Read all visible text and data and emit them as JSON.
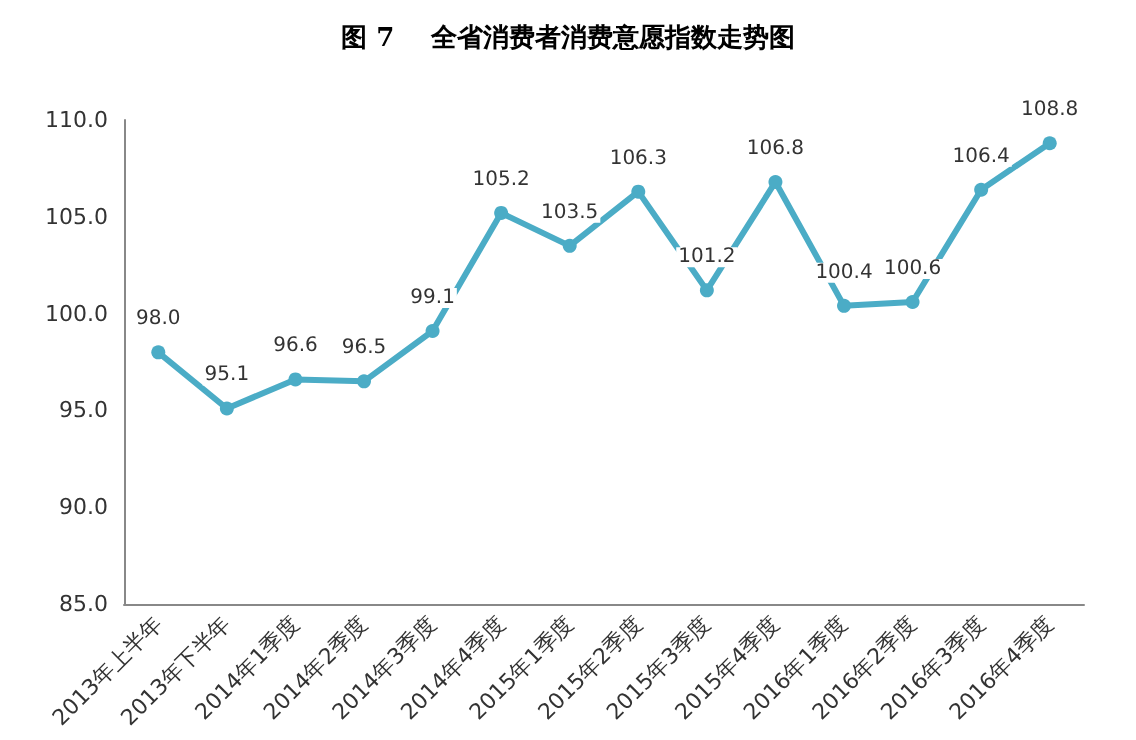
{
  "chart_data": {
    "type": "line",
    "title": "图 7    全省消费者消费意愿指数走势图",
    "categories": [
      "2013年上半年",
      "2013年下半年",
      "2014年1季度",
      "2014年2季度",
      "2014年3季度",
      "2014年4季度",
      "2015年1季度",
      "2015年2季度",
      "2015年3季度",
      "2015年4季度",
      "2016年1季度",
      "2016年2季度",
      "2016年3季度",
      "2016年4季度"
    ],
    "values": [
      98.0,
      95.1,
      96.6,
      96.5,
      99.1,
      105.2,
      103.5,
      106.3,
      101.2,
      106.8,
      100.4,
      100.6,
      106.4,
      108.8
    ],
    "value_labels": [
      "98.0",
      "95.1",
      "96.6",
      "96.5",
      "99.1",
      "105.2",
      "103.5",
      "106.3",
      "101.2",
      "106.8",
      "100.4",
      "100.6",
      "106.4",
      "108.8"
    ],
    "color": "#4bacc6",
    "ylim": [
      85,
      110
    ],
    "yticks": [
      {
        "value": 85,
        "label": "85.0"
      },
      {
        "value": 90,
        "label": "90.0"
      },
      {
        "value": 95,
        "label": "95.0"
      },
      {
        "value": 100,
        "label": "100.0"
      },
      {
        "value": 105,
        "label": "105.0"
      },
      {
        "value": 110,
        "label": "110.0"
      }
    ],
    "grid": false,
    "marker": "circle",
    "line_style": "solid"
  }
}
